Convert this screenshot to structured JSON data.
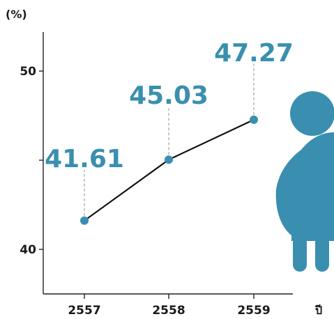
{
  "chart_data": {
    "type": "line",
    "ylabel": "(%)",
    "xlabel": "ปี",
    "categories": [
      "2557",
      "2558",
      "2559"
    ],
    "series": [
      {
        "values": [
          41.61,
          45.03,
          47.27
        ]
      }
    ],
    "data_labels": [
      "41.61",
      "45.03",
      "47.27"
    ],
    "y_ticks": [
      {
        "value": 40,
        "label": "40"
      },
      {
        "value": 45,
        "label": ""
      },
      {
        "value": 50,
        "label": "50"
      }
    ],
    "ylim": [
      38,
      53
    ],
    "grid": false,
    "legend": "none",
    "colors": {
      "accent": "#3a8fb0",
      "line": "#111111",
      "axis": "#222222",
      "leader": "#8f8f8f"
    },
    "decoration_icon": "pregnant-woman-icon"
  }
}
